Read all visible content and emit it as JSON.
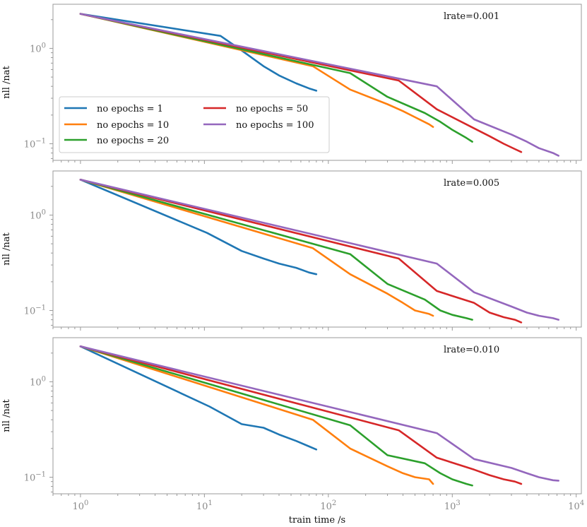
{
  "chart_data": {
    "type": "line",
    "xscale": "log",
    "yscale": "log",
    "xlim": [
      0.6,
      11000
    ],
    "ylim": [
      0.067,
      2.9
    ],
    "xlabel": "train time /s",
    "ylabel": "nll /nat",
    "x_ticks": [
      {
        "value": 1,
        "base": "10",
        "exp": "0"
      },
      {
        "value": 10,
        "base": "10",
        "exp": "1"
      },
      {
        "value": 100,
        "base": "10",
        "exp": "2"
      },
      {
        "value": 1000,
        "base": "10",
        "exp": "3"
      },
      {
        "value": 10000,
        "base": "10",
        "exp": "4"
      }
    ],
    "y_ticks": [
      {
        "value": 1,
        "base": "10",
        "exp": "0"
      },
      {
        "value": 0.1,
        "base": "10",
        "exp": "−1"
      }
    ],
    "legend": {
      "location": "lower-left",
      "entries": [
        {
          "label": "no epochs = 1",
          "color": "#1f77b4"
        },
        {
          "label": "no epochs = 10",
          "color": "#ff7f0e"
        },
        {
          "label": "no epochs = 20",
          "color": "#2ca02c"
        },
        {
          "label": "no epochs = 50",
          "color": "#d62728"
        },
        {
          "label": "no epochs = 100",
          "color": "#9467bd"
        }
      ]
    },
    "panels": [
      {
        "label": "lrate=0.001",
        "series": [
          {
            "name": "no epochs = 1",
            "color": "#1f77b4",
            "x": [
              1,
              13.5,
              20,
              30,
              40,
              55,
              70,
              80
            ],
            "y": [
              2.3,
              1.35,
              0.95,
              0.65,
              0.52,
              0.43,
              0.38,
              0.36
            ]
          },
          {
            "name": "no epochs = 10",
            "color": "#ff7f0e",
            "x": [
              1,
              75,
              150,
              300,
              400,
              500,
              650,
              700
            ],
            "y": [
              2.3,
              0.65,
              0.37,
              0.26,
              0.22,
              0.19,
              0.16,
              0.15
            ]
          },
          {
            "name": "no epochs = 20",
            "color": "#2ca02c",
            "x": [
              1,
              150,
              300,
              600,
              800,
              1000,
              1300,
              1450
            ],
            "y": [
              2.3,
              0.55,
              0.31,
              0.21,
              0.17,
              0.14,
              0.115,
              0.105
            ]
          },
          {
            "name": "no epochs = 50",
            "color": "#d62728",
            "x": [
              1,
              370,
              750,
              1500,
              2000,
              2600,
              3200,
              3600
            ],
            "y": [
              2.3,
              0.46,
              0.23,
              0.145,
              0.12,
              0.1,
              0.088,
              0.082
            ]
          },
          {
            "name": "no epochs = 100",
            "color": "#9467bd",
            "x": [
              1,
              750,
              1500,
              3000,
              4000,
              5000,
              6500,
              7200
            ],
            "y": [
              2.3,
              0.4,
              0.18,
              0.125,
              0.105,
              0.09,
              0.08,
              0.075
            ]
          }
        ]
      },
      {
        "label": "lrate=0.005",
        "series": [
          {
            "name": "no epochs = 1",
            "color": "#1f77b4",
            "x": [
              1,
              10.5,
              20,
              30,
              40,
              55,
              70,
              80
            ],
            "y": [
              2.35,
              0.65,
              0.42,
              0.35,
              0.31,
              0.28,
              0.25,
              0.24
            ]
          },
          {
            "name": "no epochs = 10",
            "color": "#ff7f0e",
            "x": [
              1,
              75,
              150,
              300,
              400,
              500,
              650,
              700
            ],
            "y": [
              2.35,
              0.45,
              0.24,
              0.15,
              0.12,
              0.1,
              0.092,
              0.088
            ]
          },
          {
            "name": "no epochs = 20",
            "color": "#2ca02c",
            "x": [
              1,
              150,
              300,
              600,
              800,
              1000,
              1300,
              1450
            ],
            "y": [
              2.35,
              0.39,
              0.19,
              0.13,
              0.1,
              0.09,
              0.083,
              0.08
            ]
          },
          {
            "name": "no epochs = 50",
            "color": "#d62728",
            "x": [
              1,
              370,
              750,
              1500,
              2000,
              2600,
              3200,
              3600
            ],
            "y": [
              2.35,
              0.35,
              0.16,
              0.12,
              0.095,
              0.085,
              0.08,
              0.075
            ]
          },
          {
            "name": "no epochs = 100",
            "color": "#9467bd",
            "x": [
              1,
              750,
              1500,
              3000,
              4000,
              5000,
              6500,
              7200
            ],
            "y": [
              2.35,
              0.31,
              0.155,
              0.11,
              0.095,
              0.088,
              0.083,
              0.08
            ]
          }
        ]
      },
      {
        "label": "lrate=0.010",
        "series": [
          {
            "name": "no epochs = 1",
            "color": "#1f77b4",
            "x": [
              1,
              11,
              20,
              30,
              40,
              55,
              70,
              80
            ],
            "y": [
              2.35,
              0.55,
              0.36,
              0.33,
              0.28,
              0.24,
              0.21,
              0.195
            ]
          },
          {
            "name": "no epochs = 10",
            "color": "#ff7f0e",
            "x": [
              1,
              75,
              150,
              300,
              400,
              500,
              650,
              700
            ],
            "y": [
              2.35,
              0.4,
              0.2,
              0.13,
              0.11,
              0.1,
              0.095,
              0.085
            ]
          },
          {
            "name": "no epochs = 20",
            "color": "#2ca02c",
            "x": [
              1,
              150,
              300,
              600,
              800,
              1000,
              1300,
              1450
            ],
            "y": [
              2.35,
              0.35,
              0.17,
              0.14,
              0.11,
              0.095,
              0.085,
              0.082
            ]
          },
          {
            "name": "no epochs = 50",
            "color": "#d62728",
            "x": [
              1,
              370,
              750,
              1500,
              2000,
              2600,
              3200,
              3600
            ],
            "y": [
              2.35,
              0.31,
              0.16,
              0.12,
              0.105,
              0.095,
              0.09,
              0.085
            ]
          },
          {
            "name": "no epochs = 100",
            "color": "#9467bd",
            "x": [
              1,
              750,
              1500,
              3000,
              4000,
              5000,
              6500,
              7200
            ],
            "y": [
              2.35,
              0.29,
              0.155,
              0.125,
              0.11,
              0.1,
              0.093,
              0.092
            ]
          }
        ]
      }
    ]
  }
}
